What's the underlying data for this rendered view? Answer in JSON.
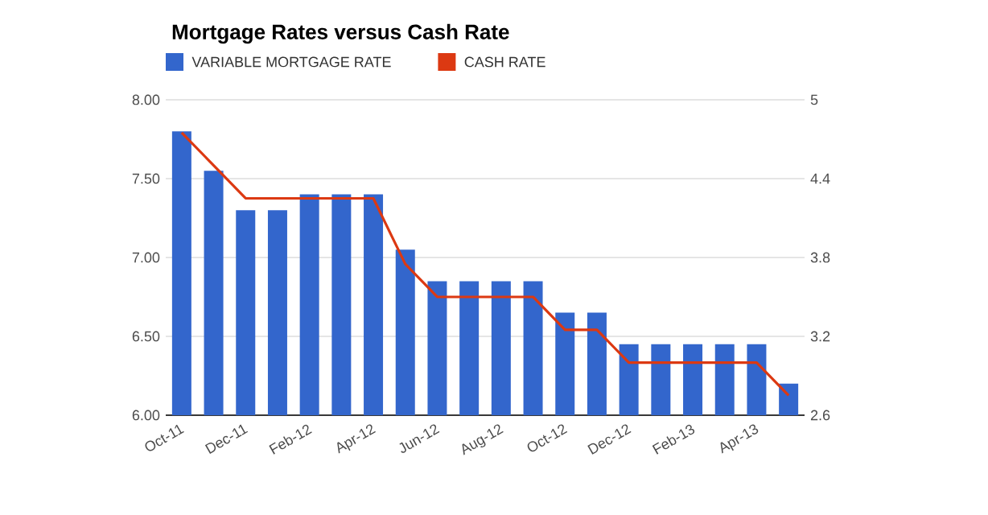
{
  "chart_data": {
    "type": "bar",
    "title": "Mortgage Rates versus Cash Rate",
    "categories": [
      "Oct-11",
      null,
      "Dec-11",
      null,
      "Feb-12",
      null,
      "Apr-12",
      null,
      "Jun-12",
      null,
      "Aug-12",
      null,
      "Oct-12",
      null,
      "Dec-12",
      null,
      "Feb-13",
      null,
      "Apr-13",
      null
    ],
    "series": [
      {
        "name": "VARIABLE MORTGAGE RATE",
        "color": "#3366cc",
        "values": [
          7.8,
          7.55,
          7.3,
          7.3,
          7.4,
          7.4,
          7.4,
          7.05,
          6.85,
          6.85,
          6.85,
          6.85,
          6.65,
          6.65,
          6.45,
          6.45,
          6.45,
          6.45,
          6.45,
          6.2
        ]
      },
      {
        "name": "CASH RATE",
        "type": "line",
        "axis": "y2",
        "color": "#dc3912",
        "values": [
          4.75,
          4.5,
          4.25,
          4.25,
          4.25,
          4.25,
          4.25,
          3.75,
          3.5,
          3.5,
          3.5,
          3.5,
          3.25,
          3.25,
          3.0,
          3.0,
          3.0,
          3.0,
          3.0,
          2.75
        ]
      }
    ],
    "ylim": [
      6,
      8
    ],
    "yticks": [
      {
        "value": 6,
        "label": "6.00"
      },
      {
        "value": 6.5,
        "label": "6.50"
      },
      {
        "value": 7,
        "label": "7.00"
      },
      {
        "value": 7.5,
        "label": "7.50"
      },
      {
        "value": 8,
        "label": "8.00"
      }
    ],
    "y2lim": [
      2.6,
      5
    ],
    "y2ticks": [
      2.6,
      3.2,
      3.8,
      4.4,
      5
    ],
    "grid": "y",
    "legend": "top left"
  }
}
